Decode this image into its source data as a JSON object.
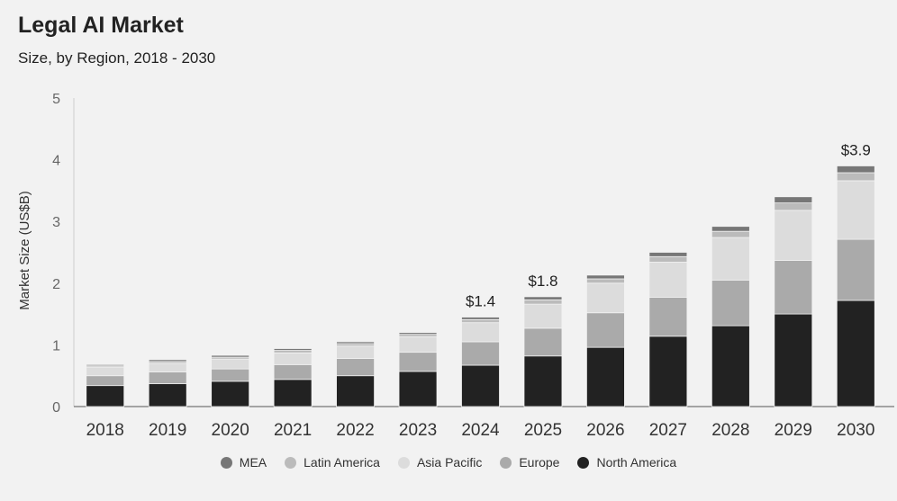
{
  "header": {
    "title": "Legal AI Market",
    "subtitle": "Size, by Region, 2018 - 2030"
  },
  "chart_data": {
    "type": "bar",
    "stacked": true,
    "title": "Legal AI Market",
    "subtitle": "Size, by Region, 2018 - 2030",
    "xlabel": "",
    "ylabel": "Market Size (US$B)",
    "ylim": [
      0,
      5
    ],
    "yticks": [
      "0",
      "1",
      "2",
      "3",
      "4",
      "5"
    ],
    "grid": false,
    "legend_position": "bottom",
    "categories": [
      "2018",
      "2019",
      "2020",
      "2021",
      "2022",
      "2023",
      "2024",
      "2025",
      "2026",
      "2027",
      "2028",
      "2029",
      "2030"
    ],
    "series": [
      {
        "name": "North America",
        "color": "#222222",
        "values": [
          0.34,
          0.37,
          0.41,
          0.44,
          0.5,
          0.57,
          0.67,
          0.82,
          0.96,
          1.14,
          1.31,
          1.5,
          1.72
        ]
      },
      {
        "name": "Europe",
        "color": "#aaaaaa",
        "values": [
          0.16,
          0.19,
          0.2,
          0.24,
          0.28,
          0.31,
          0.38,
          0.45,
          0.56,
          0.63,
          0.74,
          0.87,
          0.99
        ]
      },
      {
        "name": "Asia Pacific",
        "color": "#dcdcdc",
        "values": [
          0.14,
          0.14,
          0.16,
          0.19,
          0.2,
          0.25,
          0.31,
          0.39,
          0.48,
          0.57,
          0.69,
          0.81,
          0.95
        ]
      },
      {
        "name": "Latin America",
        "color": "#bbbbbb",
        "values": [
          0.02,
          0.03,
          0.03,
          0.04,
          0.04,
          0.04,
          0.05,
          0.07,
          0.07,
          0.09,
          0.1,
          0.12,
          0.13
        ]
      },
      {
        "name": "MEA",
        "color": "#777777",
        "values": [
          0.02,
          0.03,
          0.03,
          0.03,
          0.03,
          0.03,
          0.04,
          0.05,
          0.06,
          0.07,
          0.08,
          0.1,
          0.11
        ]
      }
    ],
    "data_labels": [
      {
        "category": "2024",
        "text": "$1.4"
      },
      {
        "category": "2025",
        "text": "$1.8"
      },
      {
        "category": "2030",
        "text": "$3.9"
      }
    ],
    "legend_order": [
      "MEA",
      "Latin America",
      "Asia Pacific",
      "Europe",
      "North America"
    ]
  }
}
